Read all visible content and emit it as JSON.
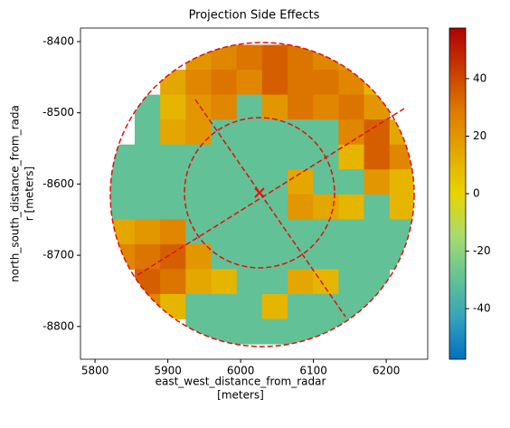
{
  "chart_data": {
    "type": "heatmap",
    "title": "Projection Side Effects",
    "xlabel": [
      "east_west_distance_from_radar",
      "[meters]"
    ],
    "ylabel": [
      "north_south_distance_from_rada",
      "r [meters]"
    ],
    "xlim": [
      5780,
      6257
    ],
    "ylim": [
      -8846,
      -8381
    ],
    "xticks": [
      5800,
      5900,
      6000,
      6100,
      6200
    ],
    "yticks": [
      -8400,
      -8500,
      -8600,
      -8700,
      -8800
    ],
    "x": [
      5837,
      5872,
      5907,
      5942,
      5977,
      6012,
      6047,
      6082,
      6117,
      6152,
      6187,
      6222
    ],
    "y": [
      -8422,
      -8457,
      -8492,
      -8527,
      -8562,
      -8597,
      -8632,
      -8667,
      -8702,
      -8737,
      -8772,
      -8807
    ],
    "z": [
      [
        null,
        null,
        null,
        20,
        25,
        30,
        35,
        30,
        25,
        20,
        null,
        null
      ],
      [
        null,
        null,
        15,
        25,
        30,
        25,
        35,
        30,
        30,
        25,
        10,
        null
      ],
      [
        null,
        -30,
        10,
        20,
        25,
        -30,
        20,
        30,
        25,
        30,
        20,
        null
      ],
      [
        null,
        -30,
        15,
        20,
        -30,
        -30,
        -30,
        -30,
        -30,
        25,
        35,
        15
      ],
      [
        -30,
        -30,
        -30,
        -30,
        -30,
        -30,
        -30,
        -30,
        -30,
        10,
        35,
        25
      ],
      [
        -30,
        -30,
        -30,
        -30,
        -30,
        -30,
        -30,
        15,
        -30,
        -30,
        20,
        10
      ],
      [
        -30,
        -30,
        -30,
        -30,
        -30,
        -30,
        -30,
        20,
        15,
        10,
        -30,
        10
      ],
      [
        15,
        20,
        25,
        -30,
        -30,
        -30,
        -30,
        -30,
        -30,
        -30,
        -30,
        -30
      ],
      [
        25,
        30,
        35,
        20,
        -30,
        -30,
        -30,
        -30,
        -30,
        -30,
        -30,
        -30
      ],
      [
        null,
        35,
        30,
        15,
        10,
        -30,
        -30,
        15,
        10,
        -30,
        -30,
        null
      ],
      [
        null,
        25,
        10,
        -30,
        -30,
        -30,
        10,
        -30,
        -30,
        -30,
        -30,
        null
      ],
      [
        null,
        null,
        null,
        -30,
        -30,
        -30,
        -30,
        -30,
        -30,
        -30,
        null,
        null
      ]
    ],
    "vlim": [
      -57.6,
      57.6
    ],
    "cticks": [
      -40,
      -20,
      0,
      20,
      40
    ],
    "colormap": [
      "#0070c0",
      "#35a3b8",
      "#66c493",
      "#a9dc6e",
      "#e8d400",
      "#e4a800",
      "#de7a00",
      "#c83c00",
      "#b00000"
    ]
  }
}
